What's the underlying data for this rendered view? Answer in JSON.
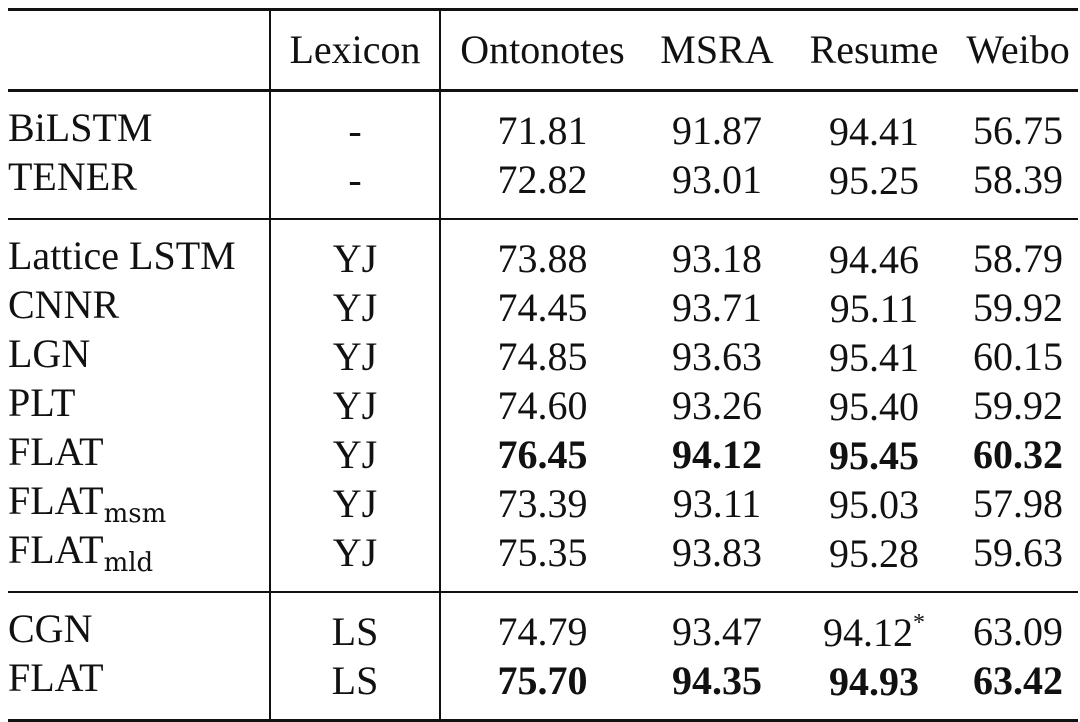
{
  "table": {
    "headers": {
      "model": "",
      "lexicon": "Lexicon",
      "ontonotes": "Ontonotes",
      "msra": "MSRA",
      "resume": "Resume",
      "weibo": "Weibo"
    },
    "groups": [
      {
        "rows": [
          {
            "model": "BiLSTM",
            "model_sub": "",
            "lexicon": "-",
            "ontonotes": "71.81",
            "msra": "91.87",
            "resume": "94.41",
            "resume_sup": "",
            "weibo": "56.75"
          },
          {
            "model": "TENER",
            "model_sub": "",
            "lexicon": "-",
            "ontonotes": "72.82",
            "msra": "93.01",
            "resume": "95.25",
            "resume_sup": "",
            "weibo": "58.39"
          }
        ]
      },
      {
        "rows": [
          {
            "model": "Lattice LSTM",
            "model_sub": "",
            "lexicon": "YJ",
            "ontonotes": "73.88",
            "msra": "93.18",
            "resume": "94.46",
            "resume_sup": "",
            "weibo": "58.79"
          },
          {
            "model": "CNNR",
            "model_sub": "",
            "lexicon": "YJ",
            "ontonotes": "74.45",
            "msra": "93.71",
            "resume": "95.11",
            "resume_sup": "",
            "weibo": "59.92"
          },
          {
            "model": "LGN",
            "model_sub": "",
            "lexicon": "YJ",
            "ontonotes": "74.85",
            "msra": "93.63",
            "resume": "95.41",
            "resume_sup": "",
            "weibo": "60.15"
          },
          {
            "model": "PLT",
            "model_sub": "",
            "lexicon": "YJ",
            "ontonotes": "74.60",
            "msra": "93.26",
            "resume": "95.40",
            "resume_sup": "",
            "weibo": "59.92"
          },
          {
            "model": "FLAT",
            "model_sub": "",
            "lexicon": "YJ",
            "ontonotes": "76.45",
            "msra": "94.12",
            "resume": "95.45",
            "resume_sup": "",
            "weibo": "60.32",
            "bold": true
          },
          {
            "model": "FLAT",
            "model_sub": "msm",
            "lexicon": "YJ",
            "ontonotes": "73.39",
            "msra": "93.11",
            "resume": "95.03",
            "resume_sup": "",
            "weibo": "57.98"
          },
          {
            "model": "FLAT",
            "model_sub": "mld",
            "lexicon": "YJ",
            "ontonotes": "75.35",
            "msra": "93.83",
            "resume": "95.28",
            "resume_sup": "",
            "weibo": "59.63"
          }
        ]
      },
      {
        "rows": [
          {
            "model": "CGN",
            "model_sub": "",
            "lexicon": "LS",
            "ontonotes": "74.79",
            "msra": "93.47",
            "resume": "94.12",
            "resume_sup": "*",
            "weibo": "63.09"
          },
          {
            "model": "FLAT",
            "model_sub": "",
            "lexicon": "LS",
            "ontonotes": "75.70",
            "msra": "94.35",
            "resume": "94.93",
            "resume_sup": "",
            "weibo": "63.42",
            "bold": true
          }
        ]
      }
    ]
  }
}
